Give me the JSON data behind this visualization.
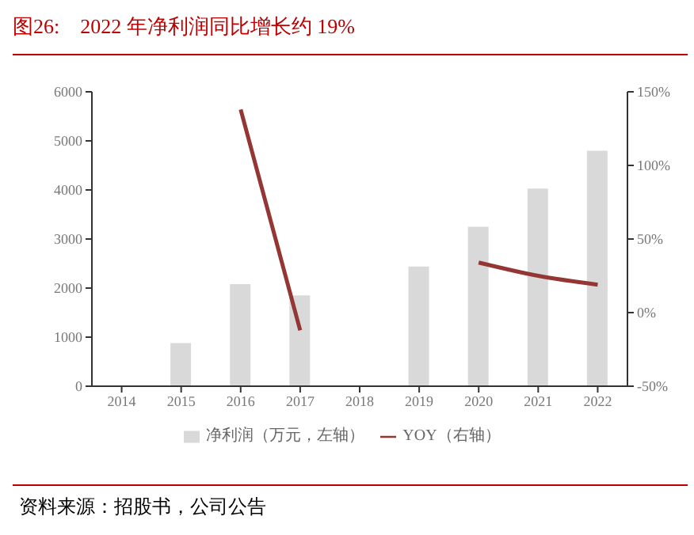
{
  "chart_data": {
    "type": "bar",
    "title": "图26:    2022 年净利润同比增长约 19%",
    "categories": [
      "2014",
      "2015",
      "2016",
      "2017",
      "2018",
      "2019",
      "2020",
      "2021",
      "2022"
    ],
    "series": [
      {
        "name": "净利润（万元，左轴）",
        "color": "#d9d9d9",
        "values": [
          null,
          880,
          2080,
          1850,
          null,
          2440,
          3250,
          4030,
          4800
        ]
      },
      {
        "name": "YOY（右轴）",
        "type": "line",
        "axis": "y2",
        "color": "#943634",
        "values": [
          null,
          null,
          138,
          -12,
          null,
          null,
          34,
          25,
          19
        ]
      }
    ],
    "ylim": [
      0,
      6000
    ],
    "yticks": [
      0,
      1000,
      2000,
      3000,
      4000,
      5000,
      6000
    ],
    "y2lim": [
      -50,
      150
    ],
    "y2ticks": [
      {
        "value": -50,
        "label": "-50%"
      },
      {
        "value": 0,
        "label": "0%"
      },
      {
        "value": 50,
        "label": "50%"
      },
      {
        "value": 100,
        "label": "100%"
      },
      {
        "value": 150,
        "label": "150%"
      }
    ],
    "grid": false,
    "legend": "bottom",
    "marker": "none",
    "line_style": "solid",
    "annotations": [
      "资料来源：招股书，公司公告"
    ]
  }
}
